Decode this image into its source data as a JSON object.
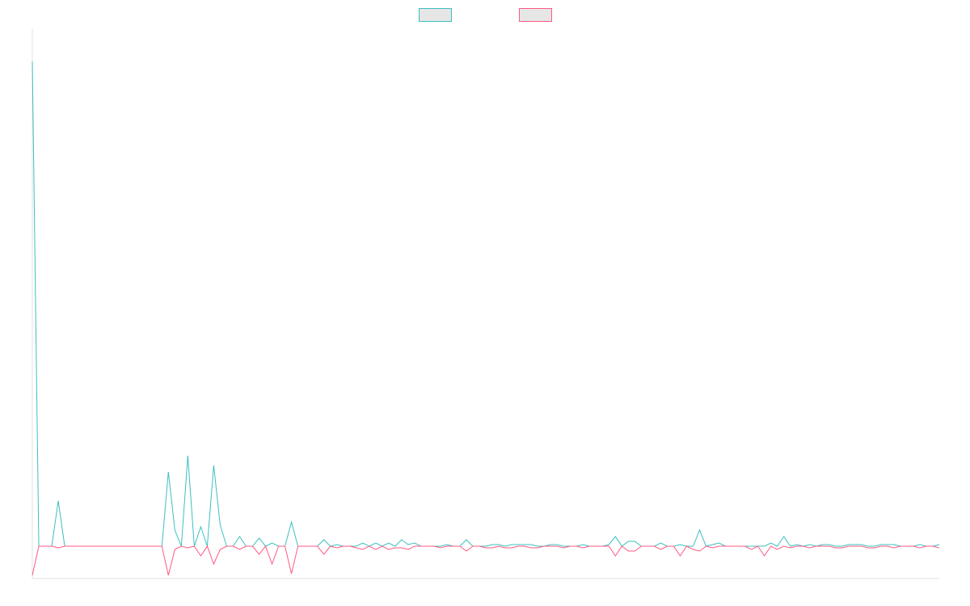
{
  "chart_data": {
    "type": "line",
    "title": "",
    "xlabel": "",
    "ylabel": "",
    "grid": false,
    "legend_position": "top-center",
    "ylim": [
      -1,
      16
    ],
    "x": [
      0,
      1,
      2,
      3,
      4,
      5,
      6,
      7,
      8,
      9,
      10,
      11,
      12,
      13,
      14,
      15,
      16,
      17,
      18,
      19,
      20,
      21,
      22,
      23,
      24,
      25,
      26,
      27,
      28,
      29,
      30,
      31,
      32,
      33,
      34,
      35,
      36,
      37,
      38,
      39,
      40,
      41,
      42,
      43,
      44,
      45,
      46,
      47,
      48,
      49,
      50,
      51,
      52,
      53,
      54,
      55,
      56,
      57,
      58,
      59,
      60,
      61,
      62,
      63,
      64,
      65,
      66,
      67,
      68,
      69,
      70,
      71,
      72,
      73,
      74,
      75,
      76,
      77,
      78,
      79,
      80,
      81,
      82,
      83,
      84,
      85,
      86,
      87,
      88,
      89,
      90,
      91,
      92,
      93,
      94,
      95,
      96,
      97,
      98,
      99,
      100,
      101,
      102,
      103,
      104,
      105,
      106,
      107,
      108,
      109,
      110,
      111,
      112,
      113,
      114,
      115,
      116,
      117,
      118,
      119,
      120,
      121,
      122,
      123,
      124,
      125,
      126,
      127,
      128,
      129,
      130,
      131,
      132,
      133,
      134,
      135,
      136,
      137,
      138,
      139,
      140
    ],
    "series": [
      {
        "name": "",
        "color": "#3cbfc0",
        "values": [
          15.0,
          0.0,
          0.0,
          0.0,
          1.4,
          0.0,
          0.0,
          0.0,
          0.0,
          0.0,
          0.0,
          0.0,
          0.0,
          0.0,
          0.0,
          0.0,
          0.0,
          0.0,
          0.0,
          0.0,
          0.0,
          2.3,
          0.5,
          0.0,
          2.8,
          0.0,
          0.6,
          0.0,
          2.5,
          0.65,
          0.0,
          0.0,
          0.3,
          0.0,
          0.0,
          0.25,
          0.0,
          0.1,
          0.0,
          0.0,
          0.75,
          0.0,
          0.0,
          0.0,
          0.0,
          0.2,
          0.0,
          0.05,
          0.0,
          0.0,
          0.0,
          0.1,
          0.0,
          0.1,
          0.0,
          0.1,
          0.0,
          0.2,
          0.05,
          0.1,
          0.0,
          0.0,
          0.0,
          0.0,
          0.05,
          0.0,
          0.0,
          0.2,
          0.0,
          0.0,
          0.0,
          0.05,
          0.05,
          0.0,
          0.05,
          0.05,
          0.05,
          0.05,
          0.0,
          0.0,
          0.05,
          0.05,
          0.0,
          0.0,
          0.0,
          0.05,
          0.0,
          0.0,
          0.0,
          0.05,
          0.3,
          0.0,
          0.15,
          0.15,
          0.0,
          0.0,
          0.0,
          0.1,
          0.0,
          0.0,
          0.05,
          0.0,
          0.0,
          0.5,
          0.0,
          0.05,
          0.1,
          0.0,
          0.0,
          0.0,
          0.0,
          0.0,
          0.0,
          0.0,
          0.1,
          0.0,
          0.3,
          0.0,
          0.05,
          0.0,
          0.05,
          0.0,
          0.05,
          0.05,
          0.0,
          0.0,
          0.05,
          0.05,
          0.05,
          0.0,
          0.0,
          0.05,
          0.05,
          0.05,
          0.0,
          0.0,
          0.0,
          0.05,
          0.0,
          0.0,
          0.05
        ]
      },
      {
        "name": "",
        "color": "#ff5a82",
        "values": [
          -0.9,
          0.0,
          0.0,
          0.0,
          -0.05,
          0.0,
          0.0,
          0.0,
          0.0,
          0.0,
          0.0,
          0.0,
          0.0,
          0.0,
          0.0,
          0.0,
          0.0,
          0.0,
          0.0,
          0.0,
          0.0,
          -0.9,
          -0.1,
          0.0,
          -0.05,
          0.0,
          -0.3,
          0.0,
          -0.55,
          -0.1,
          0.0,
          0.0,
          -0.1,
          0.0,
          0.0,
          -0.25,
          0.0,
          -0.55,
          0.0,
          0.0,
          -0.85,
          0.0,
          0.0,
          0.0,
          0.0,
          -0.25,
          0.0,
          -0.05,
          0.0,
          0.0,
          -0.05,
          -0.1,
          0.0,
          -0.1,
          0.0,
          -0.1,
          -0.05,
          -0.05,
          -0.1,
          0.0,
          0.0,
          0.0,
          0.0,
          -0.05,
          0.0,
          0.0,
          0.0,
          -0.15,
          0.0,
          0.0,
          -0.05,
          -0.05,
          0.0,
          -0.05,
          -0.05,
          0.0,
          0.0,
          -0.05,
          -0.05,
          0.0,
          0.0,
          0.0,
          -0.05,
          0.0,
          0.0,
          -0.05,
          0.0,
          0.0,
          0.0,
          0.0,
          -0.3,
          0.0,
          -0.15,
          -0.15,
          0.0,
          0.0,
          0.0,
          -0.1,
          0.0,
          0.0,
          -0.3,
          0.0,
          -0.1,
          -0.15,
          0.0,
          -0.05,
          0.0,
          0.0,
          0.0,
          0.0,
          0.0,
          -0.1,
          0.0,
          -0.3,
          0.0,
          -0.1,
          0.0,
          -0.05,
          0.0,
          0.0,
          -0.05,
          0.0,
          0.0,
          0.0,
          -0.05,
          -0.05,
          0.0,
          0.0,
          0.0,
          -0.05,
          -0.05,
          0.0,
          0.0,
          -0.05,
          0.0,
          0.0,
          0.0,
          -0.05,
          0.0,
          0.0,
          -0.05
        ]
      }
    ]
  }
}
